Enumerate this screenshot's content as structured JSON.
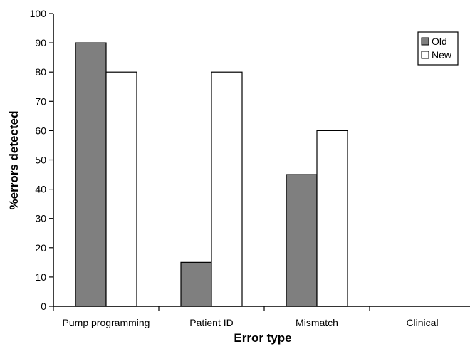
{
  "chart_data": {
    "type": "bar",
    "categories": [
      "Pump programming",
      "Patient ID",
      "Mismatch",
      "Clinical"
    ],
    "series": [
      {
        "name": "Old",
        "values": [
          90,
          15,
          45,
          0
        ],
        "color": "#7f7f7f"
      },
      {
        "name": "New",
        "values": [
          80,
          80,
          60,
          0
        ],
        "color": "#ffffff"
      }
    ],
    "xlabel": "Error type",
    "ylabel": "%errors detected",
    "ylim": [
      0,
      100
    ],
    "yticks": [
      0,
      10,
      20,
      30,
      40,
      50,
      60,
      70,
      80,
      90,
      100
    ],
    "grid": false,
    "legend_position": "top-right"
  }
}
